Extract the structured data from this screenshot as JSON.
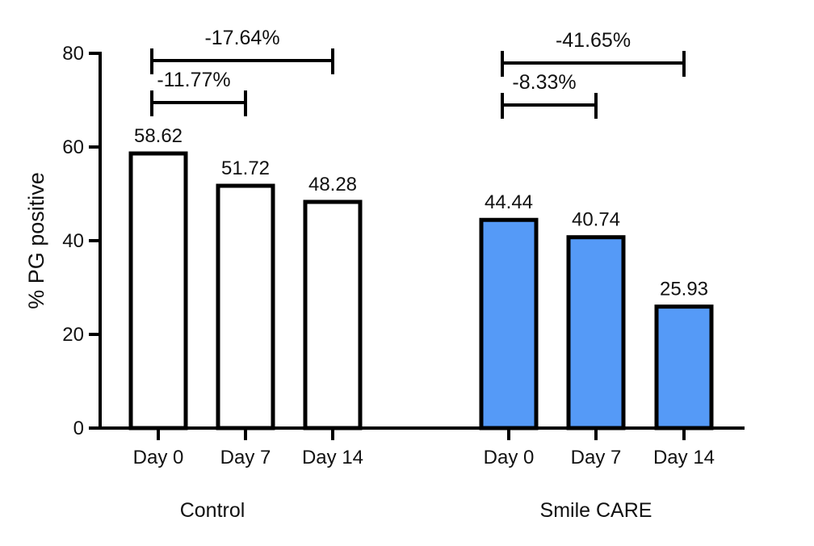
{
  "chart_data": {
    "type": "bar",
    "title": "",
    "xlabel": "",
    "ylabel": "% PG positive",
    "ylim": [
      0,
      80
    ],
    "yticks": [
      0,
      20,
      40,
      60,
      80
    ],
    "grid": false,
    "legend": "none",
    "groups": [
      {
        "name": "Control",
        "fill": "#ffffff",
        "categories": [
          "Day 0",
          "Day 7",
          "Day 14"
        ],
        "values": [
          58.62,
          51.72,
          48.28
        ],
        "value_labels": [
          "58.62",
          "51.72",
          "48.28"
        ],
        "annotations": [
          {
            "from": 0,
            "to": 1,
            "label": "-11.77%"
          },
          {
            "from": 0,
            "to": 2,
            "label": "-17.64%"
          }
        ]
      },
      {
        "name": "Smile CARE",
        "fill": "#559af7",
        "categories": [
          "Day 0",
          "Day 7",
          "Day 14"
        ],
        "values": [
          44.44,
          40.74,
          25.93
        ],
        "value_labels": [
          "44.44",
          "40.74",
          "25.93"
        ],
        "annotations": [
          {
            "from": 0,
            "to": 1,
            "label": "-8.33%"
          },
          {
            "from": 0,
            "to": 2,
            "label": "-41.65%"
          }
        ]
      }
    ]
  }
}
